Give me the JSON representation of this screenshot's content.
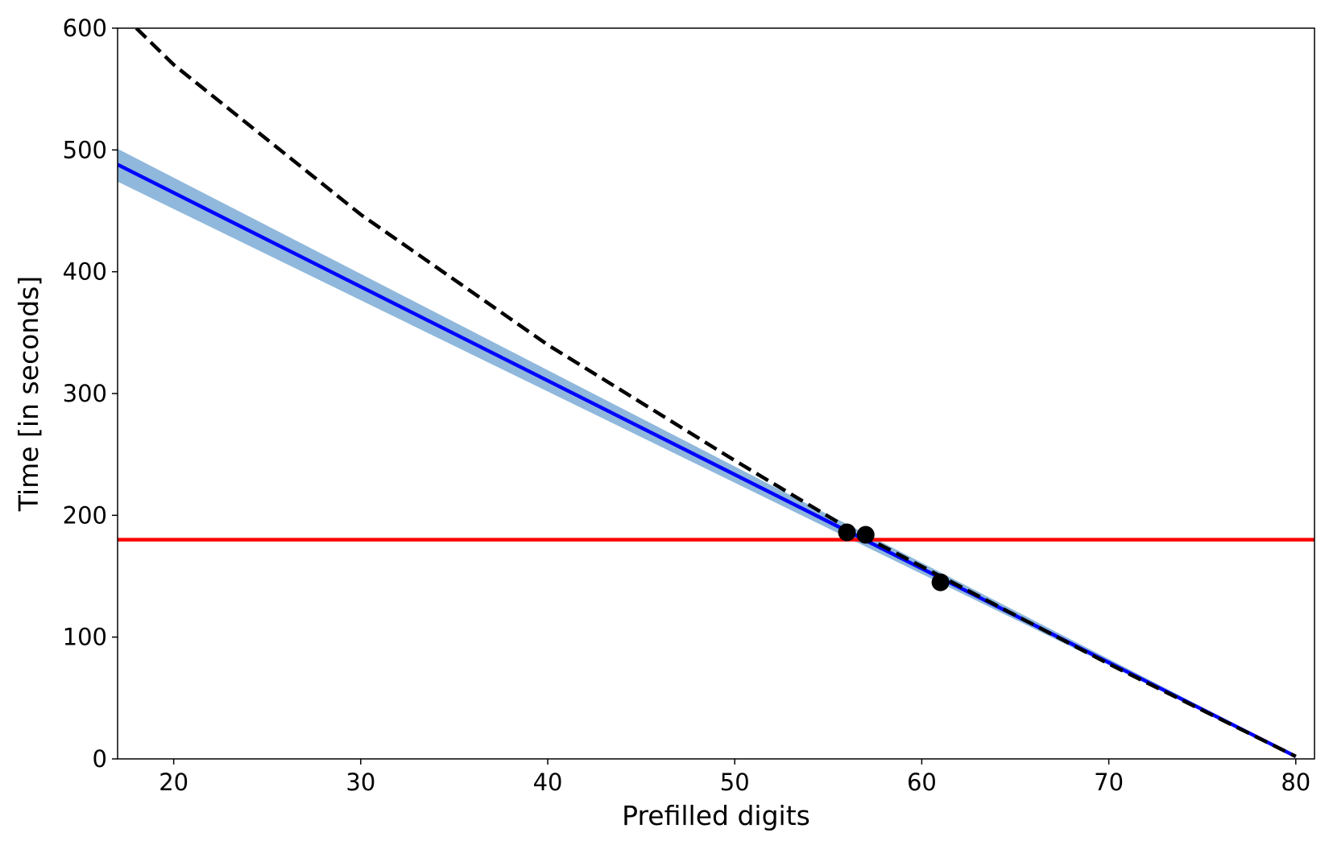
{
  "chart_data": {
    "type": "line",
    "title": "",
    "xlabel": "Prefilled digits",
    "ylabel": "Time [in seconds]",
    "xlim": [
      17,
      81
    ],
    "ylim": [
      0,
      600
    ],
    "x_ticks": [
      20,
      30,
      40,
      50,
      60,
      70,
      80
    ],
    "y_ticks": [
      0,
      100,
      200,
      300,
      400,
      500,
      600
    ],
    "grid": false,
    "legend": "none",
    "series": [
      {
        "kind": "band",
        "color": "#8fb8dc",
        "x": [
          17,
          80
        ],
        "y_low": [
          474,
          2
        ],
        "y_high": [
          501,
          3
        ]
      },
      {
        "kind": "line",
        "style": "solid",
        "color": "#0000ff",
        "x": [
          17,
          80
        ],
        "y": [
          488,
          2
        ]
      },
      {
        "kind": "line",
        "style": "dashed",
        "color": "#000000",
        "x": [
          18,
          20,
          30,
          40,
          50,
          56,
          60,
          70,
          80
        ],
        "y": [
          600,
          570,
          447,
          340,
          245,
          190,
          158,
          78,
          2
        ]
      },
      {
        "kind": "hline",
        "style": "solid",
        "color": "#ff0000",
        "y": 180
      },
      {
        "kind": "scatter",
        "color": "#000000",
        "x": [
          56,
          57,
          61
        ],
        "y": [
          186,
          184,
          145
        ]
      }
    ]
  }
}
